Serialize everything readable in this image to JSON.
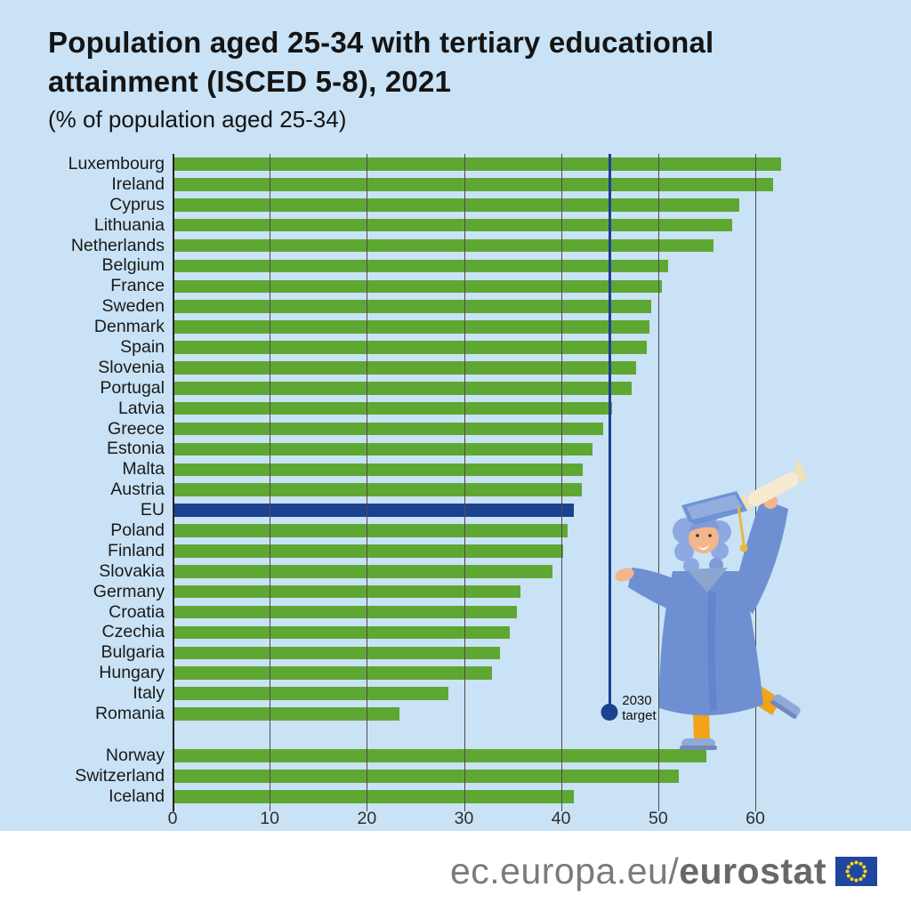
{
  "title": {
    "line1": "Population aged 25-34 with tertiary educational",
    "line2": "attainment (ISCED 5-8), 2021",
    "subtitle": "(% of population aged 25-34)"
  },
  "chart_data": {
    "type": "bar",
    "orientation": "horizontal",
    "title": "Population aged 25-34 with tertiary educational attainment (ISCED 5-8), 2021",
    "subtitle": "(% of population aged 25-34)",
    "unit": "% of population aged 25-34",
    "x_ticks": [
      0,
      10,
      20,
      30,
      40,
      50,
      60
    ],
    "xlim": [
      0,
      66
    ],
    "grid": true,
    "legend": false,
    "bar_color": "#5fa733",
    "highlight_color": "#1c4191",
    "target": {
      "value": 45,
      "label_line1": "2030",
      "label_line2": "target"
    },
    "rows": [
      {
        "label": "Luxembourg",
        "value": 62.6
      },
      {
        "label": "Ireland",
        "value": 61.7
      },
      {
        "label": "Cyprus",
        "value": 58.3
      },
      {
        "label": "Lithuania",
        "value": 57.5
      },
      {
        "label": "Netherlands",
        "value": 55.6
      },
      {
        "label": "Belgium",
        "value": 50.9
      },
      {
        "label": "France",
        "value": 50.3
      },
      {
        "label": "Sweden",
        "value": 49.2
      },
      {
        "label": "Denmark",
        "value": 49.0
      },
      {
        "label": "Spain",
        "value": 48.7
      },
      {
        "label": "Slovenia",
        "value": 47.6
      },
      {
        "label": "Portugal",
        "value": 47.2
      },
      {
        "label": "Latvia",
        "value": 45.2
      },
      {
        "label": "Greece",
        "value": 44.2
      },
      {
        "label": "Estonia",
        "value": 43.1
      },
      {
        "label": "Malta",
        "value": 42.1
      },
      {
        "label": "Austria",
        "value": 42.0
      },
      {
        "label": "EU",
        "value": 41.2,
        "highlight": true
      },
      {
        "label": "Poland",
        "value": 40.6
      },
      {
        "label": "Finland",
        "value": 40.1
      },
      {
        "label": "Slovakia",
        "value": 39.0
      },
      {
        "label": "Germany",
        "value": 35.7
      },
      {
        "label": "Croatia",
        "value": 35.4
      },
      {
        "label": "Czechia",
        "value": 34.6
      },
      {
        "label": "Bulgaria",
        "value": 33.6
      },
      {
        "label": "Hungary",
        "value": 32.8
      },
      {
        "label": "Italy",
        "value": 28.3
      },
      {
        "label": "Romania",
        "value": 23.3
      },
      {
        "label": "Norway",
        "value": 54.9,
        "gap_before": true
      },
      {
        "label": "Switzerland",
        "value": 52.0
      },
      {
        "label": "Iceland",
        "value": 41.2
      }
    ]
  },
  "colors": {
    "background": "#c9e2f5",
    "bar_green": "#5fa733",
    "eu_navy": "#1c4191",
    "target_navy": "#1c4191",
    "footer_background": "#ffffff",
    "flag_blue": "#20479f",
    "flag_stars": "#ffd617"
  },
  "illustration": "graduate-with-diploma",
  "footer": {
    "url_regular": "ec.europa.eu/",
    "url_bold": "eurostat"
  }
}
